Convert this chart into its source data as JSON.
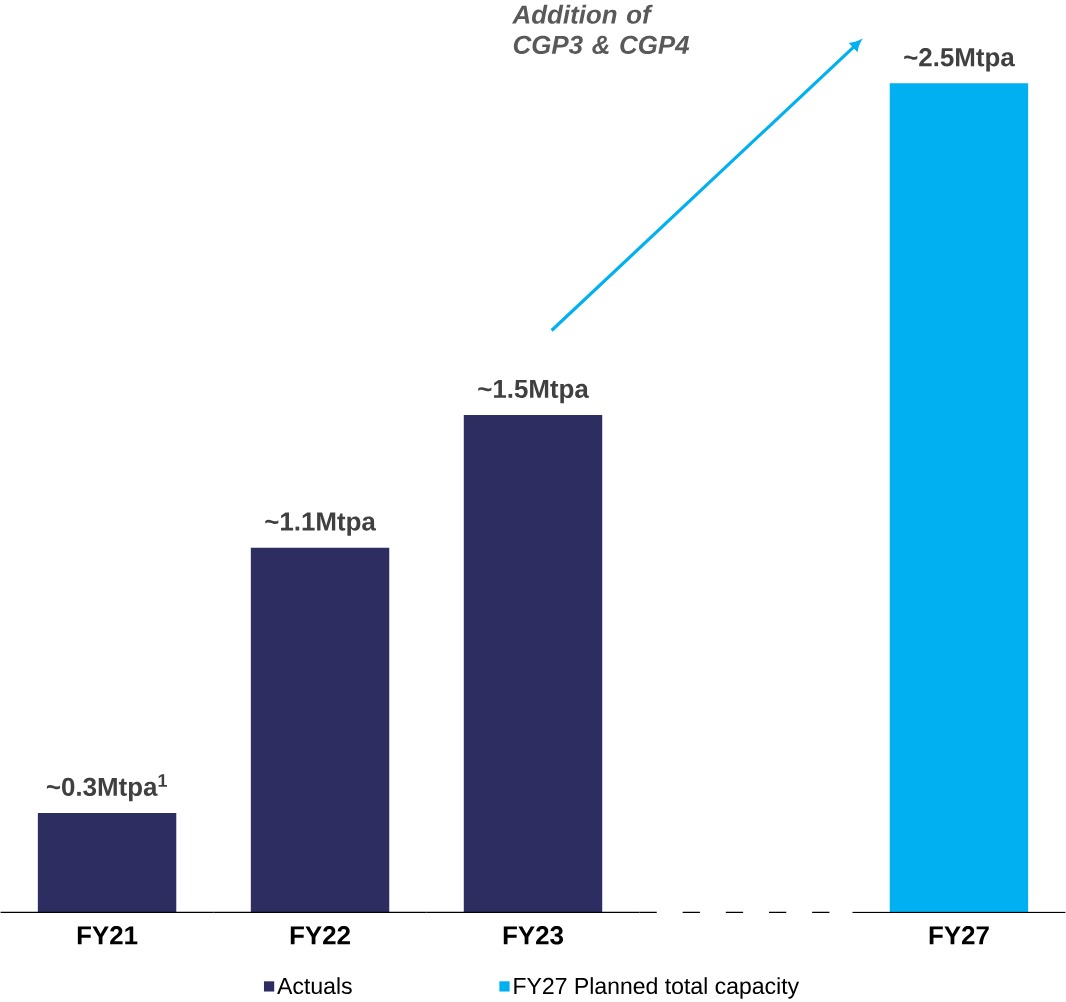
{
  "chart_data": {
    "type": "bar",
    "categories": [
      "FY21",
      "FY22",
      "FY23",
      null,
      "FY27"
    ],
    "series": [
      {
        "name": "Actuals",
        "color": "#2e2d62",
        "values": [
          0.3,
          1.1,
          1.5,
          null,
          null
        ],
        "value_labels": [
          "~0.3Mtpa$^{1}$",
          "~1.1Mtpa",
          "~1.5Mtpa",
          null,
          null
        ]
      },
      {
        "name": "FY27 Planned total capacity",
        "color": "#00b0f0",
        "values": [
          null,
          null,
          null,
          null,
          2.5
        ],
        "value_labels": [
          null,
          null,
          null,
          null,
          "~2.5Mtpa"
        ]
      }
    ],
    "annotations": [
      "*Addition of CGP3 & CGP4*"
    ],
    "legend": "bottom"
  }
}
